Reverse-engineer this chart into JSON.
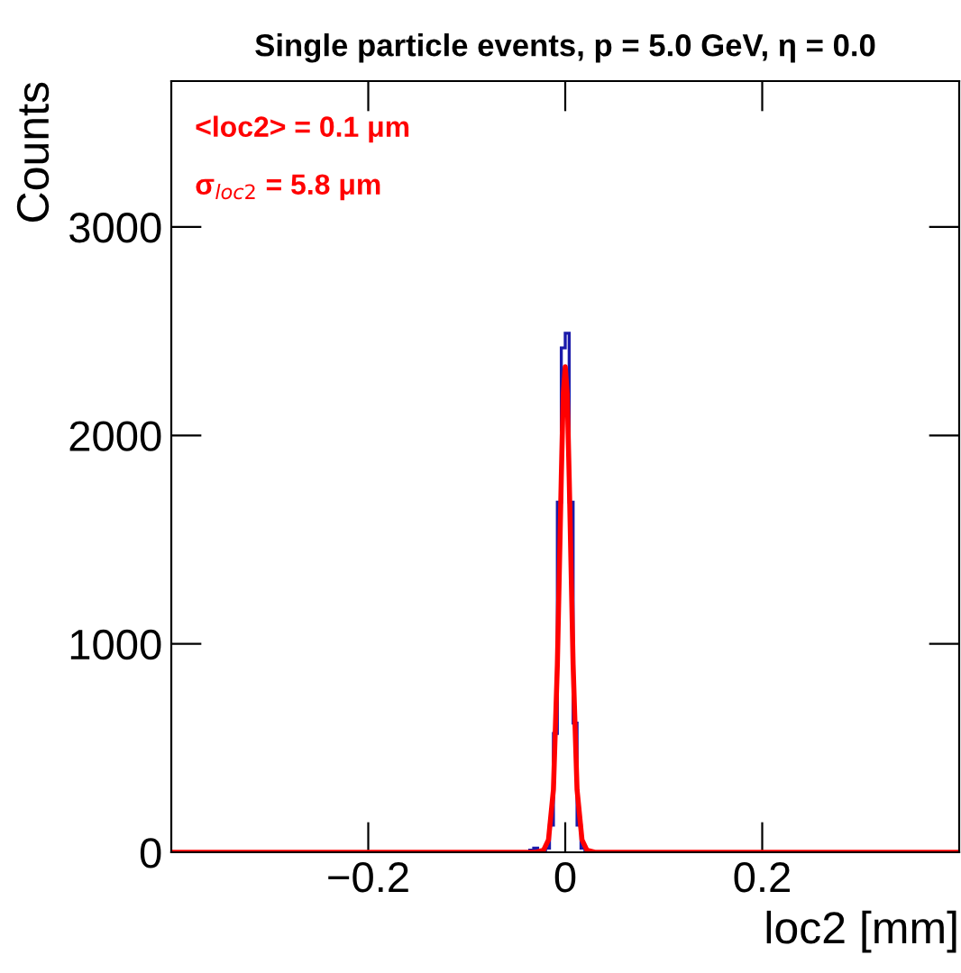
{
  "chart_data": {
    "type": "histogram",
    "title": "Single particle events, p = 5.0 GeV, η = 0.0",
    "xlabel": "loc2 [mm]",
    "ylabel": "Counts",
    "annotations": [
      "<loc2> = 0.1 μm",
      "σ$_{loc2}$ = 5.8 μm"
    ],
    "bins": [
      -0.4,
      -0.036,
      -0.032,
      -0.028,
      -0.024,
      -0.02,
      -0.016,
      -0.012,
      -0.008,
      -0.004,
      0,
      0.004,
      0.008,
      0.012,
      0.016,
      0.02,
      0.024,
      0.028,
      0.4
    ],
    "values": [
      0,
      10,
      20,
      10,
      10,
      20,
      130,
      570,
      1680,
      2420,
      2490,
      1680,
      620,
      130,
      20,
      10,
      0,
      0
    ],
    "color": "#1a1aaa",
    "series": [
      {
        "type": "line",
        "color": "#ff0000",
        "x": [
          -0.4,
          -0.03,
          -0.022,
          -0.017,
          -0.012,
          -0.008,
          -0.004,
          -0.002,
          0,
          0.002,
          0.004,
          0.008,
          0.012,
          0.017,
          0.022,
          0.03,
          0.4
        ],
        "values": [
          0,
          0,
          10,
          60,
          300,
          900,
          1800,
          2200,
          2330,
          2200,
          1800,
          900,
          300,
          60,
          10,
          0,
          0
        ]
      }
    ],
    "xlim": [
      -0.4,
      0.4
    ],
    "ylim": [
      0,
      3700
    ],
    "xticks": [
      {
        "value": -0.2,
        "label": "−0.2"
      },
      0,
      0.2
    ],
    "yticks": [
      0,
      1000,
      2000,
      3000
    ],
    "grid": false,
    "legend": false
  }
}
